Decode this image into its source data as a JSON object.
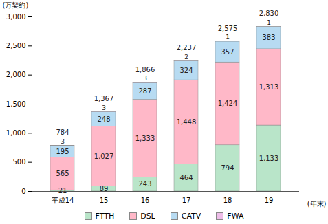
{
  "chart_data": {
    "type": "bar",
    "stacked": true,
    "data_labels": true,
    "grid": false,
    "legend": "bottom",
    "categories": [
      "平成14",
      "15",
      "16",
      "17",
      "18",
      "19"
    ],
    "x_label": "(年末)",
    "y_label": "(万契約)",
    "ylim": [
      0,
      3000
    ],
    "yticks": [
      0,
      500,
      {
        "value": 1000,
        "label": "1,000"
      },
      {
        "value": 1500,
        "label": "1,500"
      },
      {
        "value": 2000,
        "label": "2,000"
      },
      {
        "value": 2500,
        "label": "2,500"
      },
      {
        "value": 3000,
        "label": "3,000"
      }
    ],
    "series": [
      {
        "name": "FTTH",
        "color": "#b9e5c9",
        "values": [
          21,
          89,
          243,
          464,
          794,
          1133
        ],
        "value_labels": [
          "21",
          "89",
          "243",
          "464",
          "794",
          "1,133"
        ]
      },
      {
        "name": "DSL",
        "color": "#ffb8c8",
        "values": [
          565,
          1027,
          1333,
          1448,
          1424,
          1313
        ],
        "value_labels": [
          "565",
          "1,027",
          "1,333",
          "1,448",
          "1,424",
          "1,313"
        ]
      },
      {
        "name": "CATV",
        "color": "#b7dbf2",
        "values": [
          195,
          248,
          287,
          324,
          357,
          383
        ]
      },
      {
        "name": "FWA",
        "color": "#eebde9",
        "values": [
          3,
          3,
          3,
          2,
          1,
          1
        ]
      }
    ],
    "totals": [
      784,
      1367,
      1866,
      2237,
      2575,
      2830
    ],
    "total_labels": [
      "784",
      "1,367",
      "1,866",
      "2,237",
      "2,575",
      "2,830"
    ]
  }
}
